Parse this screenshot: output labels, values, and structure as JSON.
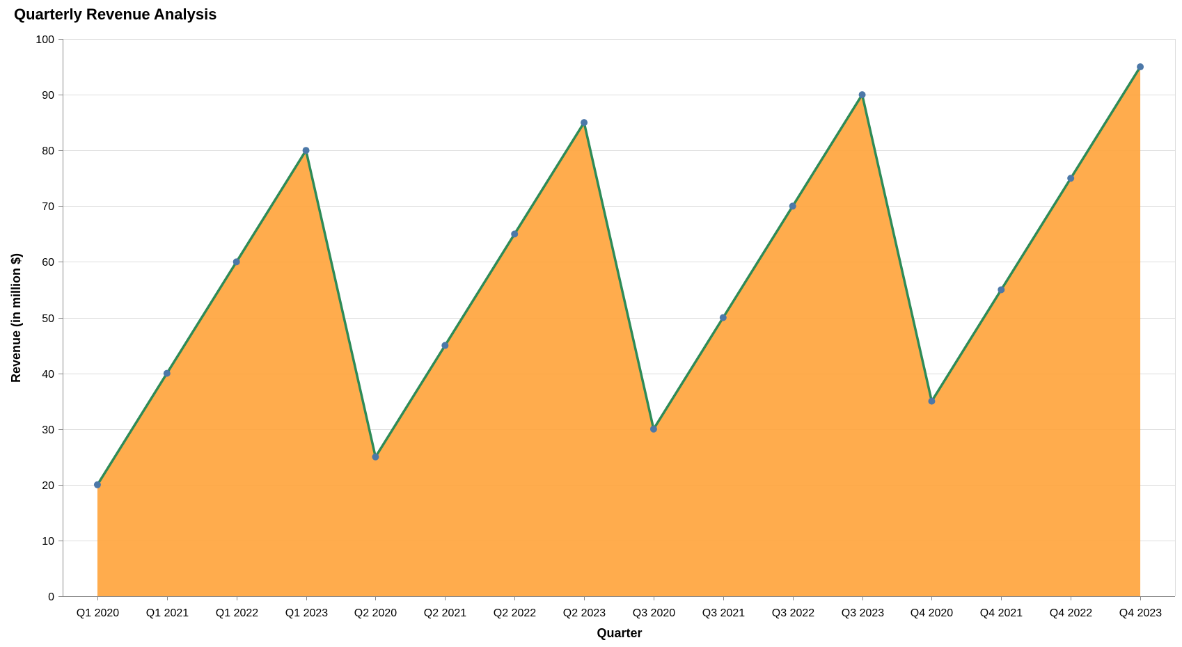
{
  "chart_data": {
    "type": "area",
    "title": "Quarterly Revenue Analysis",
    "xlabel": "Quarter",
    "ylabel": "Revenue (in million $)",
    "categories": [
      "Q1 2020",
      "Q1 2021",
      "Q1 2022",
      "Q1 2023",
      "Q2 2020",
      "Q2 2021",
      "Q2 2022",
      "Q2 2023",
      "Q3 2020",
      "Q3 2021",
      "Q3 2022",
      "Q3 2023",
      "Q4 2020",
      "Q4 2021",
      "Q4 2022",
      "Q4 2023"
    ],
    "values": [
      20,
      40,
      60,
      80,
      25,
      45,
      65,
      85,
      30,
      50,
      70,
      90,
      35,
      55,
      75,
      95
    ],
    "ylim": [
      0,
      100
    ],
    "yticks": [
      0,
      10,
      20,
      30,
      40,
      50,
      60,
      70,
      80,
      90,
      100
    ],
    "grid": true,
    "legend": "none",
    "colors": {
      "area_fill": "#ffa33a",
      "area_opacity": 0.9,
      "line": "#2e8b57",
      "point": "#4c78a8"
    }
  }
}
